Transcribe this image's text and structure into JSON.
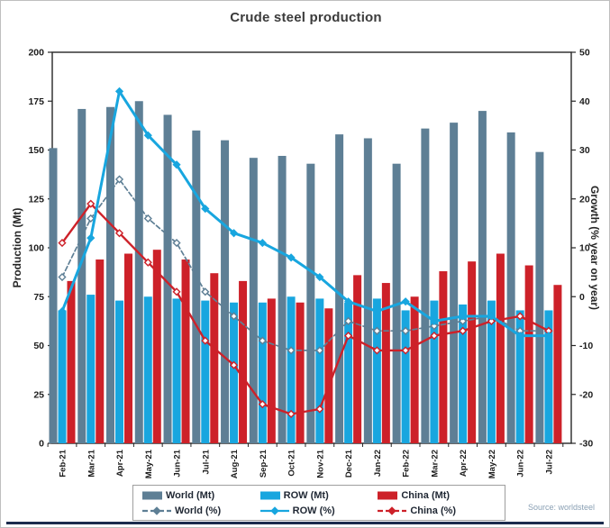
{
  "source_note": "Source: worldsteel",
  "chart_data": {
    "type": "bar",
    "subtype": "grouped-bars-with-lines",
    "title": "Crude steel production",
    "xlabel": "",
    "ylabel": "Production (Mt)",
    "ylabel_right": "Growth (% year on year)",
    "grid": false,
    "legend_position": "bottom",
    "categories": [
      "Feb-21",
      "Mar-21",
      "Apr-21",
      "May-21",
      "Jun-21",
      "Jul-21",
      "Aug-21",
      "Sep-21",
      "Oct-21",
      "Nov-21",
      "Dec-21",
      "Jan-22",
      "Feb-22",
      "Mar-22",
      "Apr-22",
      "May-22",
      "Jun-22",
      "Jul-22"
    ],
    "left_axis": {
      "label": "Production (Mt)",
      "min": 0,
      "max": 200,
      "step": 25
    },
    "right_axis": {
      "label": "Growth (% year on year)",
      "min": -30,
      "max": 50,
      "step": 10
    },
    "bar_series": [
      {
        "name": "World (Mt)",
        "color": "#5e7f95",
        "values": [
          151,
          171,
          172,
          175,
          168,
          160,
          155,
          146,
          147,
          143,
          158,
          156,
          143,
          161,
          164,
          170,
          159,
          149
        ]
      },
      {
        "name": "ROW (Mt)",
        "color": "#18a6df",
        "values": [
          68,
          76,
          73,
          75,
          74,
          73,
          72,
          72,
          75,
          74,
          72,
          74,
          68,
          73,
          71,
          73,
          68,
          68
        ]
      },
      {
        "name": "China (Mt)",
        "color": "#cd2129",
        "values": [
          83,
          94,
          97,
          99,
          94,
          87,
          83,
          74,
          72,
          69,
          86,
          82,
          75,
          88,
          93,
          97,
          91,
          81
        ]
      }
    ],
    "line_series": [
      {
        "name": "World (%)",
        "color": "#5e7f95",
        "style": "dashed",
        "marker": "open-diamond",
        "values": [
          4,
          16,
          24,
          16,
          11,
          1,
          -4,
          -9,
          -11,
          -11,
          -5,
          -7,
          -7,
          -6,
          -5,
          -4,
          -7,
          -7
        ]
      },
      {
        "name": "China (%)",
        "color": "#cd2129",
        "style": "solid",
        "marker": "open-diamond",
        "values": [
          11,
          19,
          13,
          7,
          1,
          -9,
          -14,
          -22,
          -24,
          -23,
          -8,
          -11,
          -11,
          -8,
          -7,
          -5,
          -4,
          -7
        ]
      },
      {
        "name": "ROW (%)",
        "color": "#18a6df",
        "style": "solid",
        "marker": "diamond",
        "values": [
          -3,
          12,
          42,
          33,
          27,
          18,
          13,
          11,
          8,
          4,
          -1,
          -3,
          -1,
          -5,
          -4,
          -4,
          -8,
          -8
        ]
      }
    ]
  }
}
